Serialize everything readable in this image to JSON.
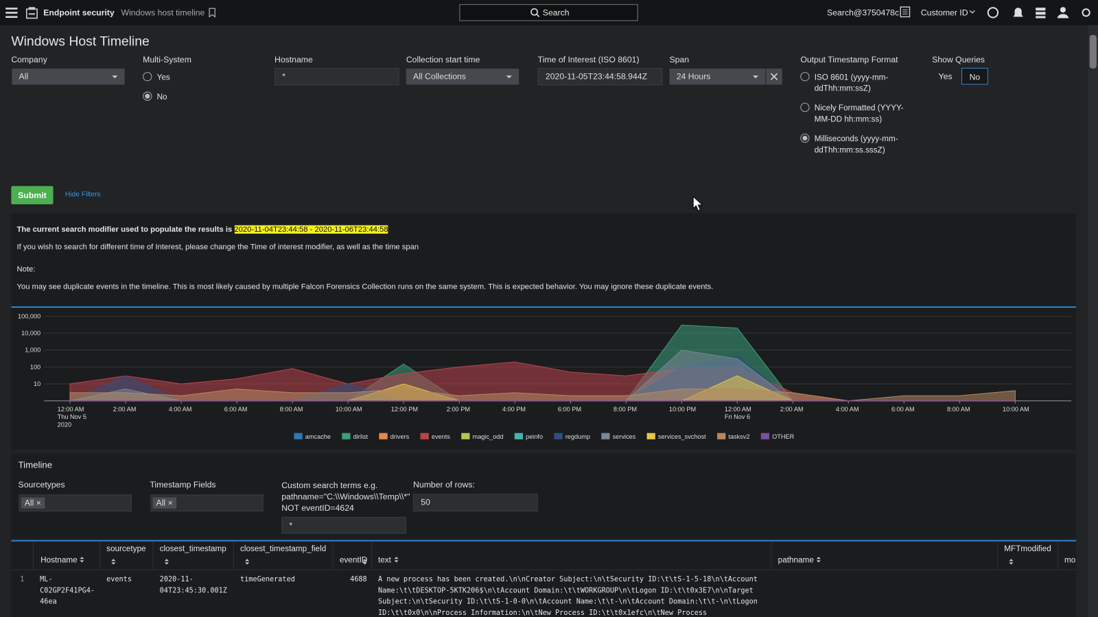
{
  "header": {
    "app": "Endpoint security",
    "page": "Windows host timeline",
    "search": "Search",
    "user": "Search@3750478c",
    "customer": "Customer ID"
  },
  "filters": {
    "title": "Windows Host Timeline",
    "company": {
      "label": "Company",
      "value": "All"
    },
    "multi_system": {
      "label": "Multi-System",
      "options": [
        "Yes",
        "No"
      ],
      "selected": 1
    },
    "hostname": {
      "label": "Hostname",
      "value": "*"
    },
    "collection": {
      "label": "Collection start time",
      "value": "All Collections"
    },
    "time_of_interest": {
      "label": "Time of Interest (ISO 8601)",
      "value": "2020-11-05T23:44:58.944Z"
    },
    "span": {
      "label": "Span",
      "value": "24 Hours"
    },
    "output_format": {
      "label": "Output Timestamp Format",
      "options": [
        "ISO 8601 (yyyy-mm-ddThh:mm:ssZ)",
        "Nicely Formatted (YYYY-MM-DD hh:mm:ss)",
        "Milliseconds (yyyy-mm-ddThh:mm:ss.sssZ)"
      ],
      "selected": 2
    },
    "show_queries": {
      "label": "Show Queries",
      "options": [
        "Yes",
        "No"
      ],
      "selected": 1
    },
    "submit": "Submit",
    "hide": "Hide Filters"
  },
  "notice": {
    "modifier_prefix": "The current search modifier used to populate the results is",
    "modifier": "2020-11-04T23:44:58 - 2020-11-06T23:44:58",
    "hint": "If you wish to search for different time of Interest, please change the Time of interest modifier, as well as the time span",
    "note_label": "Note:",
    "note": "You may see duplicate events in the timeline. This is most likely caused by multiple Falcon Forensics Collection runs on the same system. This is expected behavior. You may ignore these duplicate events."
  },
  "chart_data": {
    "type": "area",
    "log_scale": true,
    "grid": true,
    "legend": "bottom",
    "categories": [
      [
        "12:00 AM",
        "Thu Nov 5",
        "2020"
      ],
      [
        "2:00 AM"
      ],
      [
        "4:00 AM"
      ],
      [
        "6:00 AM"
      ],
      [
        "8:00 AM"
      ],
      [
        "10:00 AM"
      ],
      [
        "12:00 PM"
      ],
      [
        "2:00 PM"
      ],
      [
        "4:00 PM"
      ],
      [
        "6:00 PM"
      ],
      [
        "8:00 PM"
      ],
      [
        "10:00 PM"
      ],
      [
        "12:00 AM",
        "Fri Nov 6"
      ],
      [
        "2:00 AM"
      ],
      [
        "4:00 AM"
      ],
      [
        "6:00 AM"
      ],
      [
        "8:00 AM"
      ],
      [
        "10:00 AM"
      ]
    ],
    "ylim": [
      1,
      100000
    ],
    "yticks": [
      10,
      100,
      {
        "value": 1000,
        "label": "1,000"
      },
      {
        "value": 10000,
        "label": "10,000"
      },
      {
        "value": 100000,
        "label": "100,000"
      }
    ],
    "series": [
      {
        "name": "amcache",
        "color": "#2b78b8",
        "values": [
          1,
          1,
          1,
          1,
          1,
          1,
          1,
          1,
          1,
          1,
          1,
          1,
          1,
          1,
          1,
          1,
          1,
          1
        ]
      },
      {
        "name": "dirlist",
        "color": "#3c9f7c",
        "values": [
          1,
          1,
          1,
          1,
          1,
          1,
          150,
          1,
          1,
          1,
          1,
          30000,
          20000,
          1,
          1,
          1,
          1,
          1
        ]
      },
      {
        "name": "drivers",
        "color": "#e3894c",
        "values": [
          1,
          1,
          1,
          1,
          1,
          1,
          1,
          1,
          1,
          1,
          1,
          1,
          1,
          1,
          1,
          1,
          1,
          1
        ]
      },
      {
        "name": "events",
        "color": "#b9444c",
        "values": [
          10,
          30,
          10,
          20,
          80,
          10,
          40,
          100,
          200,
          50,
          30,
          80,
          100,
          3,
          1,
          1,
          1,
          1
        ]
      },
      {
        "name": "magic_odd",
        "color": "#b3c74a",
        "values": [
          1,
          1,
          1,
          1,
          1,
          1,
          1,
          1,
          1,
          1,
          1,
          1,
          1,
          1,
          1,
          1,
          1,
          1
        ]
      },
      {
        "name": "peinfo",
        "color": "#44b3ae",
        "values": [
          1,
          1,
          1,
          1,
          1,
          1,
          1,
          1,
          1,
          1,
          1,
          1,
          1,
          1,
          1,
          1,
          1,
          1
        ]
      },
      {
        "name": "regdump",
        "color": "#2d507f",
        "values": [
          1,
          30,
          1,
          1,
          1,
          10,
          1,
          1,
          1,
          1,
          1,
          100,
          500,
          1,
          1,
          1,
          1,
          1
        ]
      },
      {
        "name": "services",
        "color": "#788896",
        "values": [
          1,
          5,
          1,
          1,
          1,
          1,
          1,
          1,
          1,
          1,
          1,
          1000,
          300,
          1,
          1,
          1,
          1,
          1
        ]
      },
      {
        "name": "services_svchost",
        "color": "#e4c64b",
        "values": [
          1,
          1,
          1,
          1,
          1,
          1,
          10,
          1,
          1,
          1,
          1,
          1,
          30,
          1,
          1,
          1,
          1,
          1
        ]
      },
      {
        "name": "tasksv2",
        "color": "#b58963",
        "values": [
          3,
          3,
          2,
          5,
          3,
          3,
          5,
          2,
          3,
          2,
          2,
          5,
          5,
          3,
          1,
          2,
          2,
          4
        ]
      },
      {
        "name": "OTHER",
        "color": "#7a4f9f",
        "values": [
          1,
          1,
          1,
          1,
          1,
          1,
          1,
          1,
          1,
          1,
          1,
          1,
          1,
          1,
          1,
          1,
          1,
          1
        ]
      }
    ]
  },
  "timeline": {
    "title": "Timeline",
    "sourcetypes": {
      "label": "Sourcetypes",
      "tag": "All"
    },
    "timestamp_fields": {
      "label": "Timestamp Fields",
      "tag": "All"
    },
    "custom": {
      "label": "Custom search terms e.g. pathname=\"C:\\\\Windows\\\\Temp\\\\*\" NOT eventID=4624",
      "value": "*"
    },
    "rows": {
      "label": "Number of rows:",
      "value": "50"
    }
  },
  "table": {
    "columns": [
      "Hostname",
      "sourcetype",
      "closest_timestamp",
      "closest_timestamp_field",
      "eventID",
      "text",
      "pathname",
      "MFTmodified",
      "mo"
    ],
    "rows": [
      [
        "1",
        "ML-C02GP2F41PG4-46ea",
        "events",
        "2020-11-04T23:45:30.001Z",
        "timeGenerated",
        "4688",
        "A new process has been created.\\n\\nCreator Subject:\\n\\tSecurity ID:\\t\\tS-1-5-18\\n\\tAccount Name:\\t\\tDESKTOP-5KTK206$\\n\\tAccount Domain:\\t\\tWORKGROUP\\n\\tLogon ID:\\t\\t0x3E7\\n\\nTarget Subject:\\n\\tSecurity ID:\\t\\tS-1-0-0\\n\\tAccount Name:\\t\\t-\\n\\tAccount Domain:\\t\\t-\\n\\tLogon ID:\\t\\t0x0\\n\\nProcess Information:\\n\\tNew Process ID:\\t\\t0x1efc\\n\\tNew Process"
      ]
    ]
  }
}
